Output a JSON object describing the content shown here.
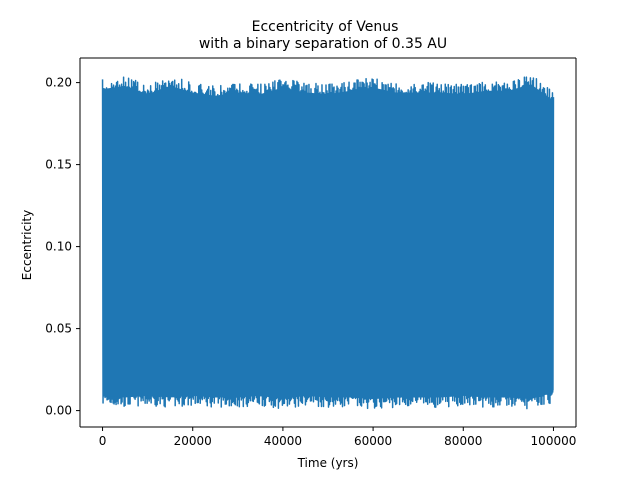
{
  "chart_data": {
    "type": "line",
    "title": "Eccentricity of Venus",
    "subtitle": "with a binary separation of 0.35 AU",
    "xlabel": "Time (yrs)",
    "ylabel": "Eccentricity",
    "xlim": [
      -5000,
      105000
    ],
    "ylim": [
      -0.01,
      0.215
    ],
    "xticks": [
      0,
      20000,
      40000,
      60000,
      80000,
      100000
    ],
    "xtick_labels": [
      "0",
      "20000",
      "40000",
      "60000",
      "80000",
      "100000"
    ],
    "yticks": [
      0.0,
      0.05,
      0.1,
      0.15,
      0.2
    ],
    "ytick_labels": [
      "0.00",
      "0.05",
      "0.10",
      "0.15",
      "0.20"
    ],
    "grid": false,
    "series": [
      {
        "color": "#1f77b4",
        "description_envelope": {
          "x": [
            0,
            5000,
            10000,
            15000,
            20000,
            25000,
            30000,
            35000,
            40000,
            45000,
            50000,
            55000,
            60000,
            65000,
            70000,
            75000,
            80000,
            85000,
            90000,
            95000,
            100000
          ],
          "y_max": [
            0.202,
            0.204,
            0.199,
            0.204,
            0.2,
            0.198,
            0.2,
            0.199,
            0.203,
            0.2,
            0.199,
            0.201,
            0.203,
            0.2,
            0.2,
            0.2,
            0.199,
            0.201,
            0.201,
            0.205,
            0.195
          ],
          "y_min": [
            0.003,
            0.002,
            0.003,
            0.002,
            0.003,
            0.002,
            0.002,
            0.003,
            0.001,
            0.003,
            0.002,
            0.002,
            0.001,
            0.002,
            0.002,
            0.002,
            0.003,
            0.002,
            0.002,
            0.001,
            0.005
          ]
        }
      }
    ]
  }
}
